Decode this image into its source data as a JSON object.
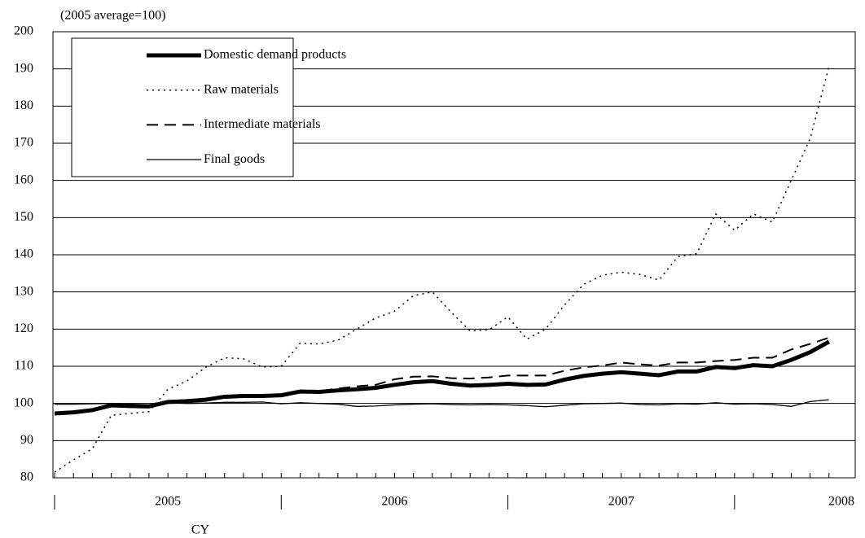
{
  "chart_data": {
    "type": "line",
    "y_label": "(2005 average=100)",
    "x_label": "CY",
    "years": [
      "2005",
      "2006",
      "2007",
      "2008"
    ],
    "ylim": [
      80,
      200
    ],
    "yticks": [
      80,
      90,
      100,
      110,
      120,
      130,
      140,
      150,
      160,
      170,
      180,
      190,
      200
    ],
    "grid": true,
    "legend": "upper left",
    "series": [
      {
        "name": "Domestic demand products",
        "color": "#000000",
        "style": "thick",
        "values": [
          97.3,
          97.6,
          98.2,
          99.5,
          99.3,
          99.2,
          100.4,
          100.6,
          101,
          101.8,
          102,
          102,
          102.2,
          103.2,
          103.1,
          103.5,
          103.8,
          104.2,
          105,
          105.7,
          106,
          105.3,
          104.8,
          105,
          105.3,
          105,
          105.1,
          106.4,
          107.4,
          108,
          108.4,
          108,
          107.6,
          108.6,
          108.6,
          109.8,
          109.5,
          110.3,
          110,
          111.7,
          113.8,
          116.6
        ]
      },
      {
        "name": "Raw materials",
        "color": "#000000",
        "style": "dotted",
        "values": [
          81.5,
          84.8,
          87.8,
          96.8,
          97.3,
          97.8,
          103.8,
          106,
          109.7,
          112.3,
          112,
          109.8,
          110,
          116.2,
          116,
          117,
          120,
          123,
          124.8,
          129,
          130,
          124.5,
          119.5,
          119.8,
          123.3,
          117.3,
          120,
          126.5,
          132,
          134.5,
          135.3,
          134.7,
          133.2,
          139.5,
          140.3,
          151,
          146.6,
          151,
          148.8,
          160,
          171.2,
          190.7
        ]
      },
      {
        "name": "Intermediate materials",
        "color": "#000000",
        "style": "dashed",
        "values": [
          97.3,
          97.6,
          98.2,
          99.5,
          99.3,
          99.2,
          100.4,
          100.6,
          101,
          101.8,
          102,
          102,
          102.2,
          103.2,
          103.3,
          104,
          104.6,
          105,
          106.5,
          107.2,
          107.3,
          106.8,
          106.7,
          107,
          107.5,
          107.5,
          107.5,
          108.8,
          109.7,
          110.2,
          111,
          110.5,
          110.2,
          111,
          111,
          111.4,
          111.7,
          112.3,
          112.3,
          114.5,
          116,
          117.7
        ]
      },
      {
        "name": "Final goods",
        "color": "#000000",
        "style": "thin",
        "values": [
          99.8,
          99.8,
          99.9,
          100,
          99.8,
          99.6,
          100.2,
          100,
          100.1,
          100.3,
          100.3,
          100.4,
          99.9,
          100.2,
          100,
          99.8,
          99.2,
          99.3,
          99.6,
          99.8,
          99.9,
          99.7,
          99.6,
          99.7,
          99.6,
          99.4,
          99.1,
          99.5,
          99.9,
          100,
          100.1,
          99.7,
          99.6,
          99.9,
          99.8,
          100.2,
          99.8,
          99.9,
          99.7,
          99.2,
          100.5,
          101
        ]
      }
    ]
  }
}
